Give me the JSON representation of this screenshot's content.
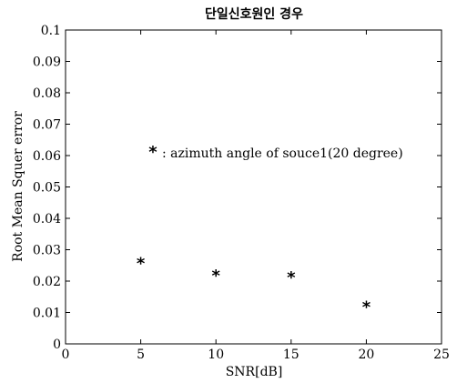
{
  "chart_data": {
    "type": "scatter",
    "title": "단일신호원인 경우",
    "xlabel": "SNR[dB]",
    "ylabel": "Root Mean Squer error",
    "xlim": [
      0,
      25
    ],
    "ylim": [
      0,
      0.1
    ],
    "x_ticks": [
      "0",
      "5",
      "10",
      "15",
      "20",
      "25"
    ],
    "y_ticks": [
      "0",
      "0.01",
      "0.02",
      "0.03",
      "0.04",
      "0.05",
      "0.06",
      "0.07",
      "0.08",
      "0.09",
      "0.1"
    ],
    "grid": false,
    "legend_position": "upper-middle",
    "series": [
      {
        "name": ": azimuth angle of souce1(20 degree)",
        "marker": "*",
        "points": [
          {
            "x": 5,
            "y": 0.026
          },
          {
            "x": 10,
            "y": 0.022
          },
          {
            "x": 15,
            "y": 0.0215
          },
          {
            "x": 20,
            "y": 0.012
          }
        ]
      }
    ]
  }
}
